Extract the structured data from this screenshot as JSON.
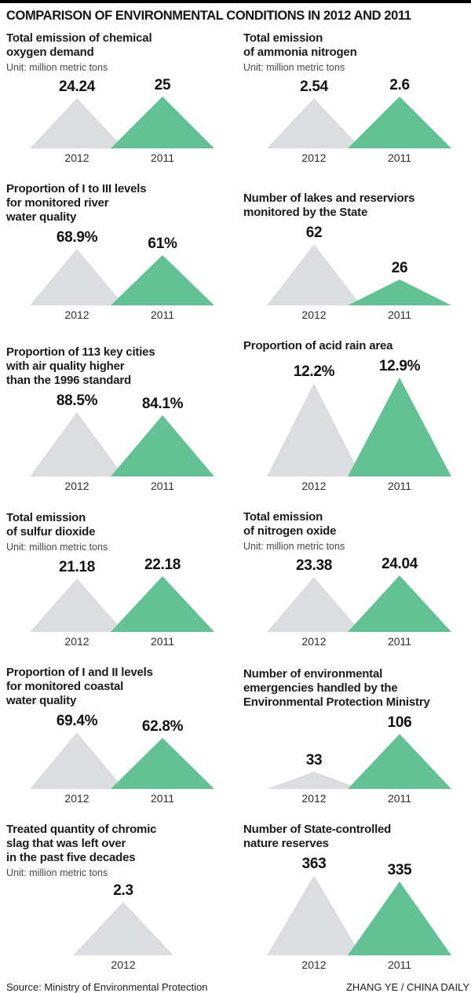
{
  "page": {
    "title": "COMPARISON OF ENVIRONMENTAL CONDITIONS IN 2012 AND 2011",
    "source": "Source: Ministry of Environmental Protection",
    "credit": "ZHANG YE / CHINA DAILY"
  },
  "colors": {
    "top_rule": "#000000",
    "series_2012": "#dcdde0",
    "series_2011": "#62c293",
    "text": "#1d1d1f"
  },
  "chart_data": [
    {
      "type": "bar",
      "shape": "triangle",
      "title": "Total emission of chemical\noxygen demand",
      "unit": "Unit: million metric tons",
      "categories": [
        "2012",
        "2011"
      ],
      "values": [
        24.24,
        25
      ],
      "labels": [
        "24.24",
        "25"
      ]
    },
    {
      "type": "bar",
      "shape": "triangle",
      "title": "Total emission\nof ammonia nitrogen",
      "unit": "Unit: million metric tons",
      "categories": [
        "2012",
        "2011"
      ],
      "values": [
        2.54,
        2.6
      ],
      "labels": [
        "2.54",
        "2.6"
      ]
    },
    {
      "type": "bar",
      "shape": "triangle",
      "title": "Proportion of I to III levels\nfor monitored river\nwater quality",
      "unit": "",
      "categories": [
        "2012",
        "2011"
      ],
      "values": [
        68.9,
        61
      ],
      "labels": [
        "68.9%",
        "61%"
      ]
    },
    {
      "type": "bar",
      "shape": "triangle",
      "title": "Number of lakes and reserviors\nmonitored by the State",
      "unit": "",
      "categories": [
        "2012",
        "2011"
      ],
      "values": [
        62,
        26
      ],
      "labels": [
        "62",
        "26"
      ]
    },
    {
      "type": "bar",
      "shape": "triangle",
      "title": "Proportion of 113 key cities\nwith air quality higher\nthan the 1996 standard",
      "unit": "",
      "categories": [
        "2012",
        "2011"
      ],
      "values": [
        88.5,
        84.1
      ],
      "labels": [
        "88.5%",
        "84.1%"
      ]
    },
    {
      "type": "bar",
      "shape": "triangle",
      "title": "Proportion of acid rain area",
      "unit": "",
      "categories": [
        "2012",
        "2011"
      ],
      "values": [
        12.2,
        12.9
      ],
      "labels": [
        "12.2%",
        "12.9%"
      ]
    },
    {
      "type": "bar",
      "shape": "triangle",
      "title": "Total emission\nof sulfur dioxide",
      "unit": "Unit: million metric tons",
      "categories": [
        "2012",
        "2011"
      ],
      "values": [
        21.18,
        22.18
      ],
      "labels": [
        "21.18",
        "22.18"
      ]
    },
    {
      "type": "bar",
      "shape": "triangle",
      "title": "Total emission\nof nitrogen oxide",
      "unit": "Unit: million metric tons",
      "categories": [
        "2012",
        "2011"
      ],
      "values": [
        23.38,
        24.04
      ],
      "labels": [
        "23.38",
        "24.04"
      ]
    },
    {
      "type": "bar",
      "shape": "triangle",
      "title": "Proportion of I and II levels\nfor monitored coastal\nwater quality",
      "unit": "",
      "categories": [
        "2012",
        "2011"
      ],
      "values": [
        69.4,
        62.8
      ],
      "labels": [
        "69.4%",
        "62.8%"
      ]
    },
    {
      "type": "bar",
      "shape": "triangle",
      "title": "Number of environmental\nemergencies handled by the\nEnvironmental Protection Ministry",
      "unit": "",
      "categories": [
        "2012",
        "2011"
      ],
      "values": [
        33,
        106
      ],
      "labels": [
        "33",
        "106"
      ]
    },
    {
      "type": "bar",
      "shape": "triangle",
      "title": "Treated quantity of chromic\nslag that was left over\nin the past five decades",
      "unit": "Unit: million metric tons",
      "categories": [
        "2012"
      ],
      "values": [
        2.3
      ],
      "labels": [
        "2.3"
      ]
    },
    {
      "type": "bar",
      "shape": "triangle",
      "title": "Number of State-controlled\nnature reserves",
      "unit": "",
      "categories": [
        "2012",
        "2011"
      ],
      "values": [
        363,
        335
      ],
      "labels": [
        "363",
        "335"
      ]
    }
  ]
}
